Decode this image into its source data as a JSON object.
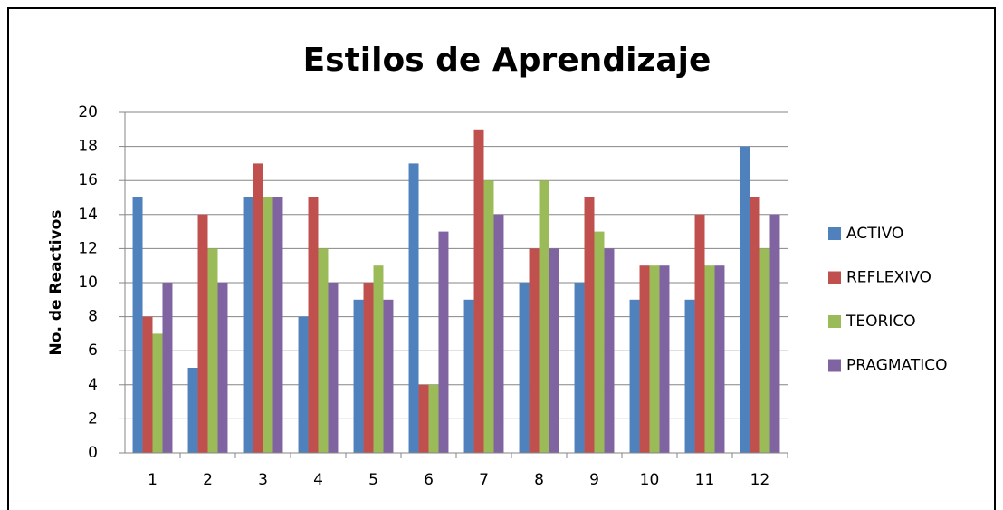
{
  "chart_data": {
    "type": "bar",
    "title": "Estilos de Aprendizaje",
    "y_label": "No. de Reactivos",
    "categories": [
      "1",
      "2",
      "3",
      "4",
      "5",
      "6",
      "7",
      "8",
      "9",
      "10",
      "11",
      "12"
    ],
    "series": [
      {
        "name": "ACTIVO",
        "color": "#4f81bd",
        "values": [
          15,
          5,
          15,
          8,
          9,
          17,
          9,
          10,
          10,
          9,
          9,
          18
        ]
      },
      {
        "name": "REFLEXIVO",
        "color": "#c0504d",
        "values": [
          8,
          14,
          17,
          15,
          10,
          4,
          19,
          12,
          15,
          11,
          14,
          15
        ]
      },
      {
        "name": "TEORICO",
        "color": "#9bbb59",
        "values": [
          7,
          12,
          15,
          12,
          11,
          4,
          16,
          16,
          13,
          11,
          11,
          12
        ]
      },
      {
        "name": "PRAGMATICO",
        "color": "#8064a2",
        "values": [
          10,
          10,
          15,
          10,
          9,
          13,
          14,
          12,
          12,
          11,
          11,
          14
        ]
      }
    ],
    "ylim": [
      0,
      20
    ],
    "yticks": [
      0,
      2,
      4,
      6,
      8,
      10,
      12,
      14,
      16,
      18,
      20
    ],
    "grid": true,
    "legend": "right"
  }
}
